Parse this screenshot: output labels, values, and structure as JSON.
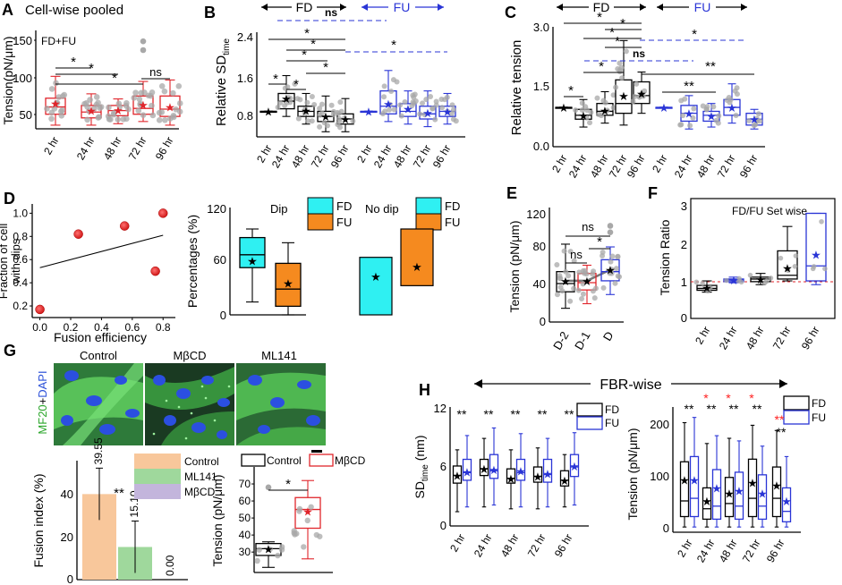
{
  "panel_letters": {
    "A": "A",
    "B": "B",
    "C": "C",
    "D": "D",
    "E": "E",
    "F": "F",
    "G": "G",
    "H": "H"
  },
  "colors": {
    "black": "#000000",
    "red": "#e0252b",
    "blue": "#2a35d6",
    "cyan": "#2ff0f2",
    "orange": "#f58a1f",
    "peach": "#f8c79b",
    "green": "#9fd89c",
    "lavender": "#c3b5dc",
    "gray": "#a8a8a8",
    "img_green": "#2aa62a",
    "img_blue": "#2a4fd8",
    "sig_red": "#ff2020"
  },
  "common": {
    "time_ticks": [
      "2 hr",
      "24 hr",
      "48 hr",
      "72 hr",
      "96 hr"
    ],
    "fd": "FD",
    "fu": "FU",
    "ns": "ns",
    "star": "*",
    "dstar": "**"
  },
  "panelA": {
    "title": "Cell-wise pooled",
    "ylabel": "Tension(pN/μm)",
    "legend": "FD+FU",
    "yticks": [
      "50",
      "100",
      "150"
    ],
    "chart_data": {
      "type": "box",
      "ylim": [
        25,
        160
      ],
      "categories": [
        "2 hr",
        "24 hr",
        "48 hr",
        "72 hr",
        "96 hr"
      ],
      "boxes": [
        {
          "min": 30,
          "q1": 45,
          "median": 55,
          "q3": 67,
          "max": 97,
          "mean": 60
        },
        {
          "min": 30,
          "q1": 40,
          "median": 48,
          "q3": 57,
          "max": 73,
          "mean": 50
        },
        {
          "min": 32,
          "q1": 43,
          "median": 50,
          "q3": 57,
          "max": 66,
          "mean": 51
        },
        {
          "min": 35,
          "q1": 45,
          "median": 53,
          "q3": 70,
          "max": 90,
          "mean": 58
        },
        {
          "min": 30,
          "q1": 42,
          "median": 52,
          "q3": 70,
          "max": 92,
          "mean": 55
        }
      ],
      "outliers": [
        {
          "category": "72 hr",
          "values": [
            145,
            133
          ]
        }
      ],
      "significance": [
        {
          "from": "2 hr",
          "to": "24 hr",
          "label": "*"
        },
        {
          "from": "2 hr",
          "to": "48 hr",
          "label": "*"
        },
        {
          "from": "2 hr",
          "to": "72 hr",
          "label": "*"
        },
        {
          "from": "72 hr",
          "to": "96 hr",
          "label": "ns"
        }
      ]
    }
  },
  "panelB": {
    "ylabel": "Relative SD",
    "ylabel_sub": "time",
    "yticks": [
      "0.8",
      "1.6",
      "2.4"
    ],
    "chart_data": {
      "type": "box",
      "ylim": [
        0.5,
        2.55
      ],
      "groups": [
        {
          "name": "FD",
          "color": "black",
          "boxes": [
            {
              "min": 1.0,
              "q1": 1.0,
              "median": 1.0,
              "q3": 1.0,
              "max": 1.0,
              "mean": 1.0
            },
            {
              "min": 0.9,
              "q1": 1.05,
              "median": 1.2,
              "q3": 1.35,
              "max": 1.7,
              "mean": 1.25
            },
            {
              "min": 0.75,
              "q1": 0.9,
              "median": 1.0,
              "q3": 1.1,
              "max": 1.35,
              "mean": 1.02
            },
            {
              "min": 0.6,
              "q1": 0.8,
              "median": 0.9,
              "q3": 1.0,
              "max": 1.3,
              "mean": 0.9
            },
            {
              "min": 0.6,
              "q1": 0.75,
              "median": 0.85,
              "q3": 0.95,
              "max": 1.25,
              "mean": 0.85
            }
          ]
        },
        {
          "name": "FU",
          "color": "blue",
          "boxes": [
            {
              "min": 1.0,
              "q1": 1.0,
              "median": 1.0,
              "q3": 1.0,
              "max": 1.0,
              "mean": 1.0
            },
            {
              "min": 0.8,
              "q1": 0.95,
              "median": 1.1,
              "q3": 1.4,
              "max": 1.8,
              "mean": 1.15
            },
            {
              "min": 0.75,
              "q1": 0.9,
              "median": 1.0,
              "q3": 1.15,
              "max": 1.4,
              "mean": 1.05
            },
            {
              "min": 0.7,
              "q1": 0.85,
              "median": 0.95,
              "q3": 1.1,
              "max": 1.4,
              "mean": 0.97
            },
            {
              "min": 0.75,
              "q1": 0.9,
              "median": 1.0,
              "q3": 1.1,
              "max": 1.35,
              "mean": 1.0
            }
          ]
        }
      ],
      "significance": [
        "ns",
        "*",
        "*",
        "*",
        "*",
        "*",
        "*"
      ]
    }
  },
  "panelC": {
    "ylabel": "Relative tension",
    "yticks": [
      "0.0",
      "1.5",
      "3.0"
    ],
    "chart_data": {
      "type": "box",
      "ylim": [
        0,
        3.05
      ],
      "groups": [
        {
          "name": "FD",
          "color": "black",
          "boxes": [
            {
              "min": 1.0,
              "q1": 1.0,
              "median": 1.0,
              "q3": 1.0,
              "max": 1.0,
              "mean": 1.0
            },
            {
              "min": 0.5,
              "q1": 0.7,
              "median": 0.8,
              "q3": 0.95,
              "max": 1.2,
              "mean": 0.8
            },
            {
              "min": 0.6,
              "q1": 0.8,
              "median": 0.9,
              "q3": 1.1,
              "max": 1.4,
              "mean": 0.92
            },
            {
              "min": 0.55,
              "q1": 0.85,
              "median": 1.1,
              "q3": 1.7,
              "max": 2.7,
              "mean": 1.3
            },
            {
              "min": 0.85,
              "q1": 1.1,
              "median": 1.3,
              "q3": 1.65,
              "max": 1.9,
              "mean": 1.35
            }
          ]
        },
        {
          "name": "FU",
          "color": "blue",
          "boxes": [
            {
              "min": 1.0,
              "q1": 1.0,
              "median": 1.0,
              "q3": 1.0,
              "max": 1.0,
              "mean": 1.0
            },
            {
              "min": 0.45,
              "q1": 0.65,
              "median": 0.85,
              "q3": 1.05,
              "max": 1.3,
              "mean": 0.85
            },
            {
              "min": 0.5,
              "q1": 0.65,
              "median": 0.8,
              "q3": 0.9,
              "max": 1.1,
              "mean": 0.78
            },
            {
              "min": 0.6,
              "q1": 0.8,
              "median": 1.0,
              "q3": 1.2,
              "max": 1.6,
              "mean": 1.0
            },
            {
              "min": 0.45,
              "q1": 0.55,
              "median": 0.7,
              "q3": 0.85,
              "max": 0.95,
              "mean": 0.7
            }
          ]
        }
      ],
      "significance": [
        "*",
        "*",
        "*",
        "*",
        "*",
        "ns",
        "*",
        "*",
        "**",
        "**"
      ]
    }
  },
  "panelD": {
    "ylabel_line1": "Fraction of cell",
    "ylabel_line2": "with dips",
    "xlabel": "Fusion efficiency",
    "xticks": [
      "0.0",
      "0.2",
      "0.4",
      "0.6",
      "0.8"
    ],
    "yticks": [
      "0.2",
      "0.4",
      "0.6",
      "0.8",
      "1.0"
    ],
    "chart_data": {
      "type": "scatter",
      "xlim": [
        -0.05,
        0.88
      ],
      "ylim": [
        0.1,
        1.08
      ],
      "points": [
        [
          0.0,
          0.17
        ],
        [
          0.25,
          0.82
        ],
        [
          0.55,
          0.89
        ],
        [
          0.75,
          0.5
        ],
        [
          0.8,
          1.0
        ]
      ],
      "fit": [
        [
          0.0,
          0.53
        ],
        [
          0.8,
          0.81
        ]
      ]
    }
  },
  "panelD2": {
    "ylabel": "Percentages (%)",
    "yticks": [
      "0",
      "60",
      "120"
    ],
    "dip_label": "Dip",
    "nodip_label": "No dip",
    "legend": [
      "FD",
      "FU"
    ],
    "chart_data": {
      "type": "box",
      "ylim": [
        0,
        125
      ],
      "dip": [
        {
          "name": "FD",
          "min": 15,
          "q1": 55,
          "median": 70,
          "q3": 90,
          "max": 100,
          "mean": 63
        },
        {
          "name": "FU",
          "min": 0,
          "q1": 10,
          "median": 30,
          "q3": 60,
          "max": 84,
          "mean": 37
        }
      ],
      "nodip": [
        {
          "name": "FD",
          "low": 0,
          "high": 67,
          "mean": 45
        },
        {
          "name": "FU",
          "low": 34,
          "high": 100,
          "mean": 56
        }
      ]
    }
  },
  "panelE": {
    "ylabel": "Tension (pN/μm)",
    "yticks": [
      "0",
      "40",
      "80",
      "120"
    ],
    "chart_data": {
      "type": "box",
      "ylim": [
        0,
        125
      ],
      "categories": [
        "D-2",
        "D-1",
        "D"
      ],
      "boxes": [
        {
          "min": 15,
          "q1": 33,
          "median": 42,
          "q3": 55,
          "max": 85,
          "mean": 45,
          "color": "black"
        },
        {
          "min": 20,
          "q1": 35,
          "median": 43,
          "q3": 53,
          "max": 62,
          "mean": 45,
          "color": "red"
        },
        {
          "min": 30,
          "q1": 45,
          "median": 55,
          "q3": 68,
          "max": 82,
          "mean": 57,
          "color": "blue"
        }
      ],
      "outliers": [
        {
          "category": "D",
          "values": [
            105,
            98
          ]
        }
      ],
      "significance": [
        {
          "from": "D-2",
          "to": "D-1",
          "label": "ns"
        },
        {
          "from": "D-1",
          "to": "D",
          "label": "*"
        },
        {
          "from": "D-2",
          "to": "D",
          "label": "ns"
        }
      ]
    }
  },
  "panelF": {
    "ylabel": "Tension Ratio",
    "title": "FD/FU Set wise",
    "yticks": [
      "0",
      "1",
      "2",
      "3"
    ],
    "chart_data": {
      "type": "box",
      "ylim": [
        0,
        3.05
      ],
      "reference_line": 1,
      "categories": [
        "2 hr",
        "24 hr",
        "48 hr",
        "72 hr",
        "96 hr"
      ],
      "boxes": [
        {
          "min": 0.7,
          "q1": 0.75,
          "median": 0.8,
          "q3": 0.88,
          "max": 1.0,
          "mean": 0.82,
          "color": "black"
        },
        {
          "min": 0.95,
          "q1": 0.98,
          "median": 1.02,
          "q3": 1.05,
          "max": 1.1,
          "mean": 1.02,
          "color": "blue"
        },
        {
          "min": 0.9,
          "q1": 0.98,
          "median": 1.05,
          "q3": 1.1,
          "max": 1.2,
          "mean": 1.05,
          "color": "black"
        },
        {
          "min": 1.0,
          "q1": 1.05,
          "median": 1.15,
          "q3": 1.8,
          "max": 2.45,
          "mean": 1.35,
          "color": "black"
        },
        {
          "min": 0.9,
          "q1": 1.0,
          "median": 1.4,
          "q3": 2.8,
          "max": 2.8,
          "mean": 1.7,
          "color": "blue"
        }
      ]
    }
  },
  "panelG": {
    "stain_a": "MF20",
    "stain_b": "DAPI",
    "image_labels": [
      "Control",
      "MβCD",
      "ML141"
    ],
    "bar": {
      "ylabel": "Fusion index (%)",
      "yticks": [
        "0",
        "20",
        "40"
      ],
      "legend": [
        "Control",
        "ML141",
        "MβCD"
      ],
      "sig": "**",
      "chart_data": {
        "type": "bar",
        "ylim": [
          0,
          55
        ],
        "categories": [
          "Control",
          "ML141",
          "MβCD"
        ],
        "values": [
          39.55,
          15.1,
          0.0
        ],
        "errors": [
          12,
          12,
          0
        ],
        "value_labels": [
          "39.55",
          "15.10",
          "0.00"
        ]
      }
    },
    "box": {
      "ylabel": "Tension (pN/μm)",
      "yticks": [
        "30",
        "40",
        "50",
        "60",
        "70"
      ],
      "legend": [
        "Control",
        "MβCD"
      ],
      "sig": "*",
      "chart_data": {
        "type": "box",
        "ylim": [
          18,
          80
        ],
        "categories": [
          "Control",
          "MβCD"
        ],
        "boxes": [
          {
            "min": 21,
            "q1": 28,
            "median": 32,
            "q3": 35,
            "max": 36,
            "mean": 32,
            "color": "black"
          },
          {
            "min": 26,
            "q1": 44,
            "median": 55,
            "q3": 62,
            "max": 72,
            "mean": 54,
            "color": "red"
          }
        ],
        "outliers": [
          {
            "category": "Control",
            "values": [
              68
            ]
          }
        ]
      }
    }
  },
  "panelH": {
    "title": "FBR-wise",
    "sd": {
      "ylabel": "SD",
      "ylabel_sub": "time",
      "ylabel_unit": " (nm)",
      "yticks": [
        "0",
        "6",
        "12"
      ],
      "legend": [
        "FD",
        "FU"
      ],
      "chart_data": {
        "type": "box",
        "ylim": [
          0,
          12.5
        ],
        "categories": [
          "2 hr",
          "24 hr",
          "48 hr",
          "72 hr",
          "96 hr"
        ],
        "series": [
          {
            "name": "FD",
            "boxes": [
              {
                "min": 1.5,
                "q1": 4.5,
                "median": 5.3,
                "q3": 6.3,
                "max": 8.0,
                "mean": 5.3
              },
              {
                "min": 2.0,
                "q1": 5.3,
                "median": 6.0,
                "q3": 7.0,
                "max": 9.2,
                "mean": 6.0
              },
              {
                "min": 1.8,
                "q1": 4.5,
                "median": 5.0,
                "q3": 6.0,
                "max": 8.0,
                "mean": 5.0
              },
              {
                "min": 1.8,
                "q1": 4.6,
                "median": 5.2,
                "q3": 6.2,
                "max": 8.2,
                "mean": 5.2
              },
              {
                "min": 2.0,
                "q1": 4.2,
                "median": 4.8,
                "q3": 5.8,
                "max": 7.5,
                "mean": 4.8
              }
            ]
          },
          {
            "name": "FU",
            "boxes": [
              {
                "min": 2.0,
                "q1": 4.8,
                "median": 5.6,
                "q3": 7.0,
                "max": 9.5,
                "mean": 5.7
              },
              {
                "min": 2.2,
                "q1": 5.0,
                "median": 5.8,
                "q3": 7.5,
                "max": 10.3,
                "mean": 5.9
              },
              {
                "min": 2.0,
                "q1": 4.8,
                "median": 5.6,
                "q3": 7.0,
                "max": 9.7,
                "mean": 5.8
              },
              {
                "min": 2.0,
                "q1": 4.6,
                "median": 5.4,
                "q3": 7.0,
                "max": 9.2,
                "mean": 5.5
              },
              {
                "min": 2.2,
                "q1": 5.2,
                "median": 6.2,
                "q3": 7.5,
                "max": 9.8,
                "mean": 6.3
              }
            ]
          }
        ],
        "significance": [
          "**",
          "**",
          "**",
          "**",
          "**"
        ]
      }
    },
    "tension": {
      "ylabel": "Tension (pN/μm)",
      "yticks": [
        "0",
        "100",
        "200"
      ],
      "legend": [
        "FD",
        "FU"
      ],
      "chart_data": {
        "type": "box",
        "ylim": [
          -5,
          235
        ],
        "categories": [
          "2 hr",
          "24 hr",
          "48 hr",
          "72 hr",
          "96 hr"
        ],
        "series": [
          {
            "name": "FD",
            "boxes": [
              {
                "min": 5,
                "q1": 25,
                "median": 55,
                "q3": 130,
                "max": 205,
                "mean": 95
              },
              {
                "min": 5,
                "q1": 20,
                "median": 40,
                "q3": 80,
                "max": 165,
                "mean": 55
              },
              {
                "min": 5,
                "q1": 25,
                "median": 50,
                "q3": 100,
                "max": 175,
                "mean": 70
              },
              {
                "min": 5,
                "q1": 25,
                "median": 60,
                "q3": 135,
                "max": 200,
                "mean": 90
              },
              {
                "min": 5,
                "q1": 25,
                "median": 60,
                "q3": 120,
                "max": 190,
                "mean": 85
              }
            ]
          },
          {
            "name": "FU",
            "boxes": [
              {
                "min": 5,
                "q1": 25,
                "median": 60,
                "q3": 140,
                "max": 215,
                "mean": 95
              },
              {
                "min": 5,
                "q1": 20,
                "median": 45,
                "q3": 115,
                "max": 180,
                "mean": 80
              },
              {
                "min": 5,
                "q1": 20,
                "median": 45,
                "q3": 110,
                "max": 170,
                "mean": 75
              },
              {
                "min": 5,
                "q1": 20,
                "median": 45,
                "q3": 105,
                "max": 160,
                "mean": 70
              },
              {
                "min": 5,
                "q1": 15,
                "median": 35,
                "q3": 80,
                "max": 140,
                "mean": 55
              }
            ]
          }
        ],
        "significance": [
          "**",
          "**",
          "**",
          "**",
          "**"
        ],
        "red_significance": [
          "*",
          "*",
          "*",
          "**"
        ]
      }
    }
  }
}
